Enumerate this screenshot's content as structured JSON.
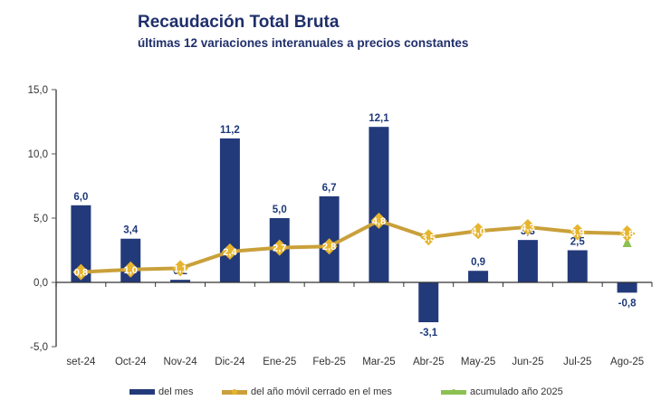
{
  "header": {
    "title": "Recaudación Total Bruta",
    "subtitle": "últimas 12 variaciones interanuales a precios constantes"
  },
  "chart_data": {
    "type": "bar",
    "title": "Recaudación Total Bruta",
    "subtitle": "últimas 12 variaciones interanuales a precios constantes",
    "xlabel": "",
    "ylabel": "",
    "categories": [
      "set-24",
      "Oct-24",
      "Nov-24",
      "Dic-24",
      "Ene-25",
      "Feb-25",
      "Mar-25",
      "Abr-25",
      "May-25",
      "Jun-25",
      "Jul-25",
      "Ago-25"
    ],
    "ylim": [
      -5,
      15
    ],
    "yticks": [
      15,
      10,
      5,
      0,
      -5
    ],
    "ytick_labels": [
      "15,0",
      "10,0",
      "5,0",
      "0,0",
      "-5,0"
    ],
    "grid": false,
    "legend_position": "bottom",
    "series": [
      {
        "name": "del mes",
        "kind": "bar",
        "color": "#233a7a",
        "values": [
          6.0,
          3.4,
          0.2,
          11.2,
          5.0,
          6.7,
          12.1,
          -3.1,
          0.9,
          3.3,
          2.5,
          -0.8
        ],
        "labels": [
          "6,0",
          "3,4",
          "0,2",
          "11,2",
          "5,0",
          "6,7",
          "12,1",
          "-3,1",
          "0,9",
          "3,3",
          "2,5",
          "-0,8"
        ]
      },
      {
        "name": "del año móvil cerrado en el mes",
        "kind": "line",
        "color": "#c9a03a",
        "marker_color": "#e6b42e",
        "values": [
          0.8,
          1.0,
          1.1,
          2.4,
          2.7,
          2.8,
          4.8,
          3.5,
          4.0,
          4.3,
          3.9,
          3.8
        ],
        "labels": [
          "0,8",
          "1,0",
          "1,1",
          "2,4",
          "2,7",
          "2,8",
          "4,8",
          "3,5",
          "4,0",
          "4,3",
          "3,9",
          "3,8"
        ]
      },
      {
        "name": "acumulado año 2025",
        "kind": "marker",
        "color": "#8cc152",
        "values": [
          null,
          null,
          null,
          null,
          null,
          null,
          null,
          null,
          null,
          null,
          null,
          3.1
        ]
      }
    ]
  },
  "legend": {
    "items": [
      "del mes",
      "del año móvil cerrado en el mes",
      "acumulado año 2025"
    ]
  }
}
